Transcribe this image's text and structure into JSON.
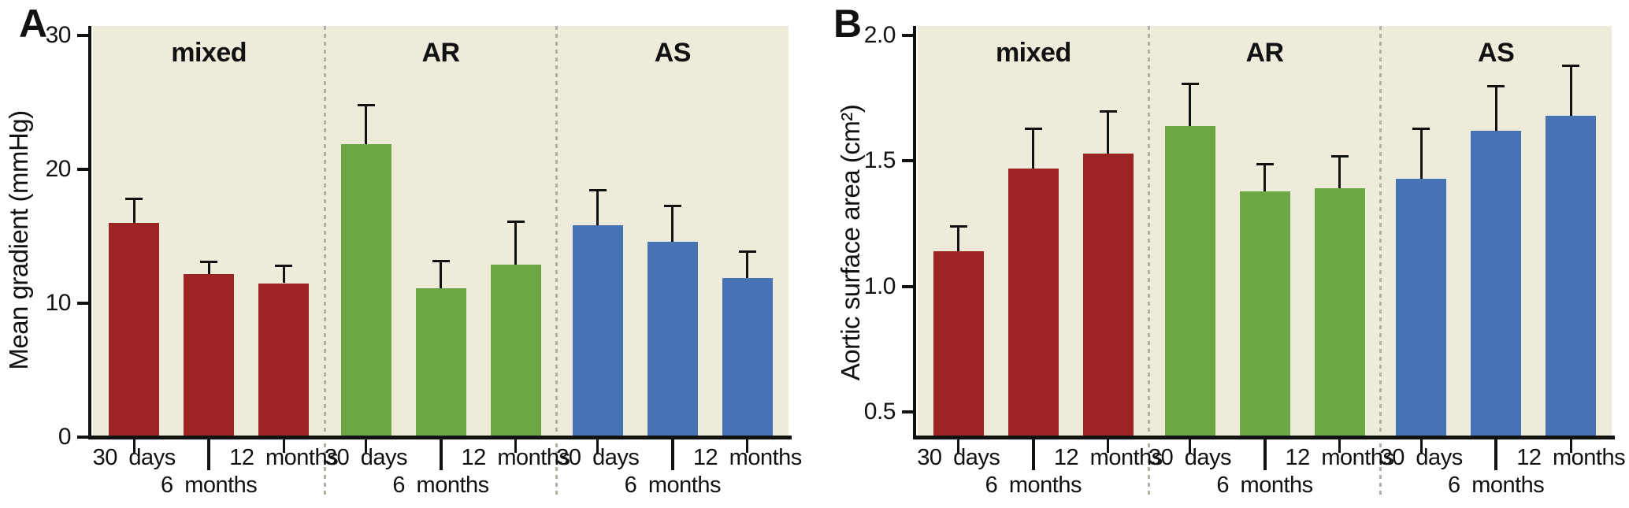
{
  "colors": {
    "plot_background": "#efebdb",
    "axis": "#111111",
    "divider_dashed": "#b3b0a4",
    "mixed_red": "#9c2422",
    "ar_green": "#6ba843",
    "as_blue": "#4673b4"
  },
  "chart_data": [
    {
      "type": "bar",
      "panel_label": "A",
      "ylabel": "Mean gradient (mmHg)",
      "ylim": [
        0,
        30
      ],
      "y_ticks": [
        {
          "v": 30,
          "label": "30"
        },
        {
          "v": 20,
          "label": "20"
        },
        {
          "v": 10,
          "label": "10"
        },
        {
          "v": 0,
          "label": "0"
        }
      ],
      "categories": [
        "30 days",
        "6 months",
        "12 months"
      ],
      "grid": false,
      "legend": "none",
      "error_direction": "up",
      "groups": [
        {
          "name": "mixed",
          "color": "#9c2422",
          "values": [
            16.0,
            12.2,
            11.5
          ],
          "errors": [
            1.8,
            0.9,
            1.3
          ]
        },
        {
          "name": "AR",
          "color": "#6ba843",
          "values": [
            21.9,
            11.1,
            12.9
          ],
          "errors": [
            2.9,
            2.1,
            3.2
          ]
        },
        {
          "name": "AS",
          "color": "#4673b4",
          "values": [
            15.8,
            14.6,
            11.9
          ],
          "errors": [
            2.7,
            2.7,
            2.0
          ]
        }
      ]
    },
    {
      "type": "bar",
      "panel_label": "B",
      "ylabel": "Aortic surface area (cm²)",
      "ylim": [
        0.4,
        2.0
      ],
      "y_ticks": [
        {
          "v": 2.0,
          "label": "2.0"
        },
        {
          "v": 1.5,
          "label": "1.5"
        },
        {
          "v": 1.0,
          "label": "1.0"
        },
        {
          "v": 0.5,
          "label": "0.5"
        }
      ],
      "categories": [
        "30 days",
        "6 months",
        "12 months"
      ],
      "grid": false,
      "legend": "none",
      "error_direction": "up",
      "groups": [
        {
          "name": "mixed",
          "color": "#9c2422",
          "values": [
            1.14,
            1.47,
            1.53
          ],
          "errors": [
            0.1,
            0.16,
            0.17
          ]
        },
        {
          "name": "AR",
          "color": "#6ba843",
          "values": [
            1.64,
            1.38,
            1.39
          ],
          "errors": [
            0.17,
            0.11,
            0.13
          ]
        },
        {
          "name": "AS",
          "color": "#4673b4",
          "values": [
            1.43,
            1.62,
            1.68
          ],
          "errors": [
            0.2,
            0.18,
            0.2
          ]
        }
      ]
    }
  ]
}
